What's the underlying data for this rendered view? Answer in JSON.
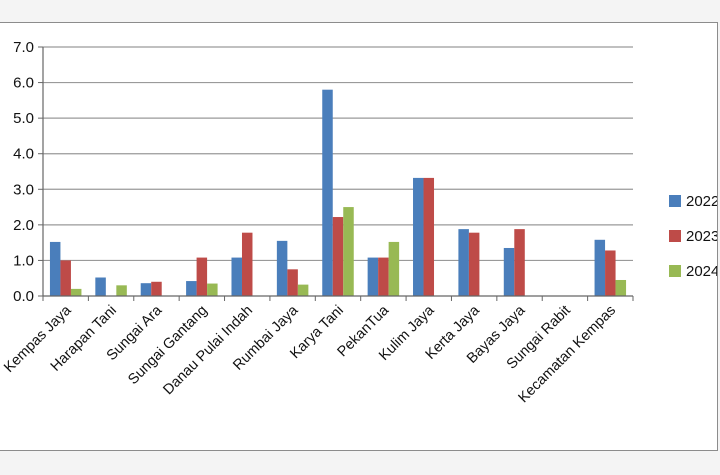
{
  "chart_data": {
    "type": "bar",
    "categories": [
      "Kempas Jaya",
      "Harapan Tani",
      "Sungai Ara",
      "Sungai Gantang",
      "Danau Pulai Indah",
      "Rumbai Jaya",
      "Karya Tani",
      "PekanTua",
      "Kulim Jaya",
      "Kerta Jaya",
      "Bayas Jaya",
      "Sungai Rabit",
      "Kecamatan Kempas"
    ],
    "series": [
      {
        "name": "2022",
        "color": "#4a7ebb",
        "values": [
          1.52,
          0.52,
          0.36,
          0.42,
          1.08,
          1.55,
          5.8,
          1.08,
          3.32,
          1.88,
          1.35,
          0,
          1.58
        ]
      },
      {
        "name": "2023",
        "color": "#be4b48",
        "values": [
          1.0,
          0,
          0.4,
          1.08,
          1.78,
          0.75,
          2.22,
          1.08,
          3.32,
          1.78,
          1.88,
          0,
          1.28
        ]
      },
      {
        "name": "2024",
        "color": "#98b954",
        "values": [
          0.2,
          0.3,
          0,
          0.35,
          0,
          0.32,
          2.5,
          1.52,
          0,
          0,
          0,
          0,
          0.45
        ]
      }
    ],
    "yticks": [
      "0.0",
      "1.0",
      "2.0",
      "3.0",
      "4.0",
      "5.0",
      "6.0",
      "7.0"
    ],
    "ylim": [
      0,
      7
    ],
    "grid": true,
    "legend_position": "right",
    "title": "",
    "xlabel": "",
    "ylabel": ""
  }
}
